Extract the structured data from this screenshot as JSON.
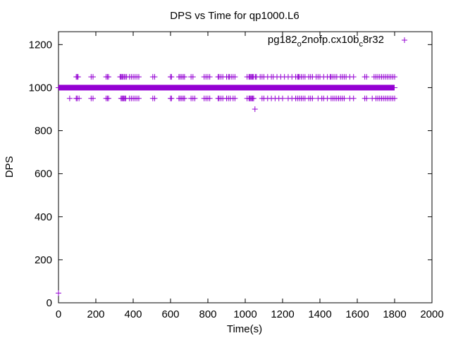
{
  "chart_data": {
    "type": "scatter",
    "title": "DPS vs Time for qp1000.L6",
    "xlabel": "Time(s)",
    "ylabel": "DPS",
    "xlim": [
      0,
      2000
    ],
    "ylim": [
      0,
      1260
    ],
    "xticks": [
      0,
      200,
      400,
      600,
      800,
      1000,
      1200,
      1400,
      1600,
      1800,
      2000
    ],
    "yticks": [
      0,
      200,
      400,
      600,
      800,
      1000,
      1200
    ],
    "legend_position": "top-right",
    "series": [
      {
        "name_parts": {
          "base": "pg182",
          "sub1": "o",
          "mid": "2nofp.cx10b",
          "sub2": "c",
          "end": "8r32"
        },
        "color": "#9400d3",
        "marker": "plus",
        "main_level": {
          "y": 1000,
          "x_range": [
            0,
            1800
          ]
        },
        "high_level": {
          "y": 1050,
          "x": [
            95,
            100,
            105,
            175,
            185,
            255,
            262,
            268,
            330,
            335,
            340,
            345,
            352,
            358,
            365,
            380,
            390,
            400,
            410,
            420,
            430,
            505,
            515,
            600,
            605,
            645,
            652,
            660,
            668,
            675,
            710,
            720,
            780,
            790,
            800,
            810,
            855,
            860,
            870,
            880,
            900,
            910,
            915,
            925,
            935,
            945,
            1010,
            1020,
            1025,
            1030,
            1035,
            1040,
            1045,
            1055,
            1060,
            1080,
            1090,
            1100,
            1120,
            1140,
            1150,
            1170,
            1190,
            1210,
            1230,
            1250,
            1270,
            1280,
            1285,
            1290,
            1300,
            1310,
            1320,
            1340,
            1350,
            1360,
            1380,
            1390,
            1400,
            1420,
            1440,
            1455,
            1460,
            1470,
            1480,
            1490,
            1510,
            1520,
            1530,
            1540,
            1560,
            1580,
            1640,
            1650,
            1690,
            1700,
            1710,
            1720,
            1730,
            1740,
            1750,
            1760,
            1770,
            1780,
            1790,
            1800
          ]
        },
        "low_level": {
          "y": 950,
          "x": [
            60,
            95,
            100,
            110,
            175,
            185,
            255,
            262,
            268,
            335,
            340,
            345,
            350,
            355,
            360,
            380,
            390,
            400,
            410,
            420,
            430,
            505,
            515,
            600,
            605,
            645,
            652,
            660,
            668,
            675,
            710,
            720,
            730,
            780,
            790,
            800,
            810,
            855,
            860,
            870,
            880,
            900,
            910,
            920,
            935,
            945,
            1010,
            1020,
            1025,
            1030,
            1035,
            1040,
            1045,
            1090,
            1100,
            1120,
            1140,
            1160,
            1180,
            1200,
            1230,
            1250,
            1270,
            1280,
            1290,
            1300,
            1310,
            1320,
            1340,
            1350,
            1360,
            1390,
            1410,
            1420,
            1440,
            1460,
            1470,
            1480,
            1490,
            1500,
            1510,
            1520,
            1530,
            1560,
            1580,
            1640,
            1650,
            1680,
            1700,
            1710,
            1720,
            1730,
            1740,
            1750,
            1760,
            1770,
            1780,
            1790,
            1800
          ]
        },
        "outliers": [
          {
            "x": 0,
            "y": 45
          },
          {
            "x": 1052,
            "y": 900
          }
        ]
      }
    ]
  }
}
